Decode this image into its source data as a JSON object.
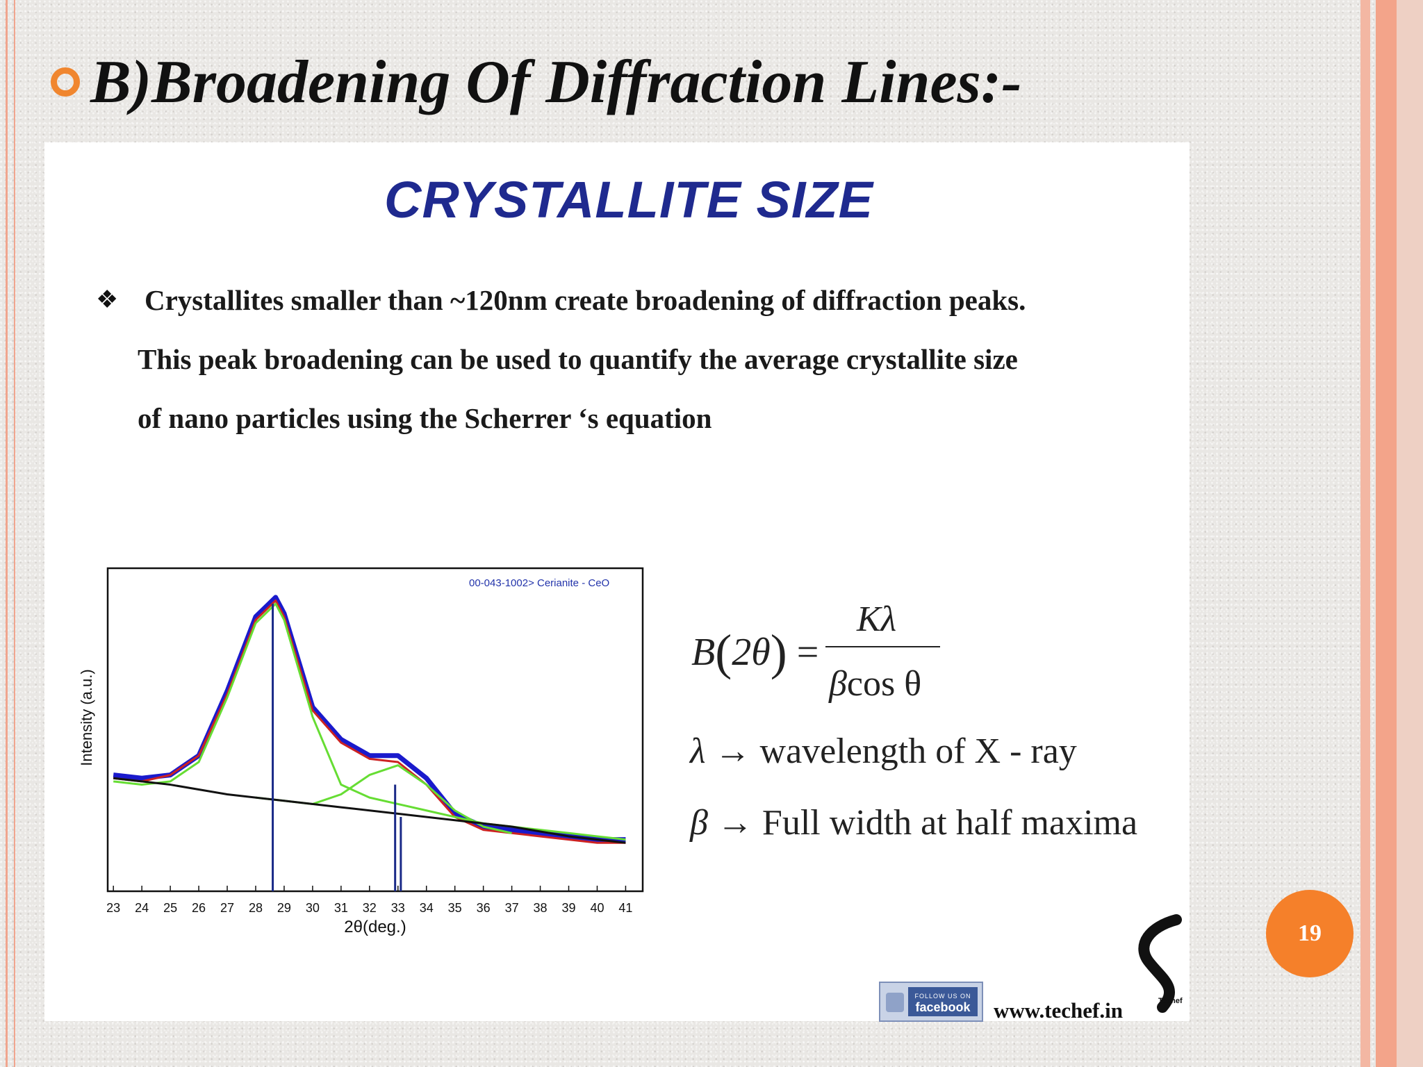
{
  "slide": {
    "title": "B)Broadening Of Diffraction Lines:-",
    "page_number": "19",
    "accent_color": "#f0862f"
  },
  "panel": {
    "heading": "CRYSTALLITE SIZE",
    "bullet_symbol": "❖",
    "paragraph_lines": [
      "Crystallites smaller than ~120nm create broadening of diffraction peaks.",
      "This peak broadening can be used to quantify the average crystallite size",
      "of nano particles using the Scherrer ‘s equation"
    ],
    "formula": {
      "lhs_B": "B",
      "lhs_arg": "2θ",
      "numerator": "Kλ",
      "denominator_beta": "β",
      "denominator_rest": "cos θ"
    },
    "legend": [
      {
        "symbol": "λ",
        "text": "wavelength of X - ray"
      },
      {
        "symbol": "β",
        "text": "Full width at half maxima"
      }
    ],
    "footer": {
      "facebook_small": "FOLLOW US ON",
      "facebook_label": "facebook",
      "url": "www.techef.in",
      "logo_text": "Techef"
    }
  },
  "chart_data": {
    "type": "line",
    "xlabel": "2θ(deg.)",
    "ylabel": "Intensity (a.u.)",
    "annotation": "00-043-1002> Cerianite - CeO",
    "xlim": [
      22.8,
      41.6
    ],
    "ylim": [
      0,
      100
    ],
    "x_ticks": [
      23,
      24,
      25,
      26,
      27,
      28,
      29,
      30,
      31,
      32,
      33,
      34,
      35,
      36,
      37,
      38,
      39,
      40,
      41
    ],
    "series": [
      {
        "color": "#1a1acc",
        "x": [
          23,
          24,
          25,
          26,
          27,
          28,
          28.7,
          29,
          30,
          31,
          32,
          33,
          34,
          35,
          36,
          37,
          38,
          39,
          40,
          41
        ],
        "y": [
          36,
          35,
          36,
          42,
          62,
          85,
          91,
          86,
          57,
          47,
          42,
          42,
          35,
          24,
          20,
          19,
          18,
          17,
          16,
          16
        ]
      },
      {
        "color": "#cc2222",
        "x": [
          23,
          24,
          25,
          26,
          27,
          28,
          28.7,
          29,
          30,
          31,
          32,
          33,
          34,
          35,
          36,
          37,
          38,
          39,
          40,
          41
        ],
        "y": [
          35,
          34,
          36,
          42,
          61,
          84,
          90,
          85,
          56,
          46,
          41,
          40,
          33,
          23,
          19,
          18,
          17,
          16,
          15,
          15
        ]
      },
      {
        "color": "#66dd33",
        "x": [
          23,
          24,
          25,
          26,
          27,
          28,
          28.7,
          29,
          30,
          31,
          32,
          33,
          34,
          35,
          36,
          37,
          38,
          39,
          40,
          41
        ],
        "y": [
          34,
          33,
          34,
          40,
          60,
          83,
          89,
          84,
          54,
          33,
          29,
          27,
          25,
          23,
          21,
          20,
          19,
          18,
          17,
          16
        ]
      },
      {
        "color": "#66dd33",
        "x": [
          28,
          29,
          30,
          31,
          32,
          33,
          34,
          35,
          36,
          37
        ],
        "y": [
          29,
          28,
          27,
          30,
          36,
          39,
          33,
          25,
          20,
          18
        ]
      },
      {
        "color": "#111111",
        "x": [
          23,
          25,
          27,
          29,
          31,
          33,
          35,
          37,
          39,
          41
        ],
        "y": [
          35,
          33,
          30,
          28,
          26,
          24,
          22,
          20,
          17,
          15
        ]
      }
    ],
    "reference_lines": [
      {
        "x": 28.6,
        "y": 89
      },
      {
        "x": 32.9,
        "y": 33
      },
      {
        "x": 33.1,
        "y": 23
      }
    ]
  }
}
